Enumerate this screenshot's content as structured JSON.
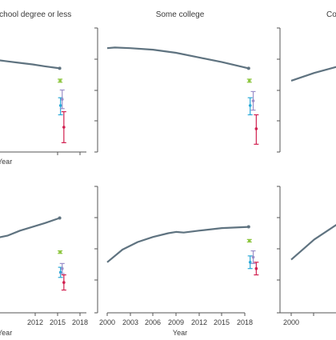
{
  "colors": {
    "trend_line": "#5f7380",
    "axis": "#555555",
    "green_marker": "#8dc63f",
    "blue_marker": "#29a9d8",
    "purple_marker": "#9b8fc9",
    "red_marker": "#d11f4f"
  },
  "chart_data": [
    {
      "type": "line",
      "title": "High school degree or less",
      "xlabel": "Year",
      "x_ticks": [
        "2012",
        "2015",
        "2018"
      ],
      "series": [
        {
          "x": [
            2000,
            2003,
            2006,
            2009,
            2012,
            2015,
            2018.5
          ],
          "values": [
            1.0,
            0.995,
            0.985,
            0.975,
            0.965,
            0.953,
            0.94
          ]
        }
      ],
      "markers": [
        {
          "color": "green",
          "x": 2018.6,
          "value": 0.86,
          "low": 0.85,
          "high": 0.87
        },
        {
          "color": "blue",
          "x": 2018.7,
          "value": 0.7,
          "low": 0.64,
          "high": 0.75
        },
        {
          "color": "purple",
          "x": 2019.1,
          "value": 0.74,
          "low": 0.68,
          "high": 0.8
        },
        {
          "color": "red",
          "x": 2019.5,
          "value": 0.56,
          "low": 0.46,
          "high": 0.66
        }
      ]
    },
    {
      "type": "line",
      "title": "Some college",
      "xlabel": "",
      "x_ticks": [],
      "series": [
        {
          "x": [
            2000,
            2001,
            2003,
            2006,
            2009,
            2012,
            2015,
            2018.5
          ],
          "values": [
            1.07,
            1.074,
            1.07,
            1.06,
            1.04,
            1.01,
            0.98,
            0.94
          ]
        }
      ],
      "markers": [
        {
          "color": "green",
          "x": 2018.6,
          "value": 0.86,
          "low": 0.85,
          "high": 0.87
        },
        {
          "color": "blue",
          "x": 2018.7,
          "value": 0.7,
          "low": 0.64,
          "high": 0.75
        },
        {
          "color": "purple",
          "x": 2019.1,
          "value": 0.73,
          "low": 0.67,
          "high": 0.79
        },
        {
          "color": "red",
          "x": 2019.5,
          "value": 0.55,
          "low": 0.45,
          "high": 0.64
        }
      ]
    },
    {
      "type": "line",
      "title": "Co",
      "xlabel": "",
      "x_ticks": [],
      "series": [
        {
          "x": [
            2000,
            2003,
            2006,
            2009
          ],
          "values": [
            0.86,
            0.91,
            0.95,
            0.98
          ]
        }
      ],
      "markers": []
    },
    {
      "type": "line",
      "title": "",
      "xlabel": "Year",
      "x_ticks": [
        "2012",
        "2015",
        "2018"
      ],
      "series": [
        {
          "x": [
            2000,
            2003,
            2006,
            2009,
            2012,
            2015,
            2018.5
          ],
          "values": [
            0.78,
            0.79,
            0.81,
            0.85,
            0.88,
            0.91,
            0.95
          ]
        }
      ],
      "markers": [
        {
          "color": "green",
          "x": 2018.6,
          "value": 0.68,
          "low": 0.67,
          "high": 0.69
        },
        {
          "color": "blue",
          "x": 2018.7,
          "value": 0.52,
          "low": 0.48,
          "high": 0.56
        },
        {
          "color": "purple",
          "x": 2019.1,
          "value": 0.55,
          "low": 0.51,
          "high": 0.59
        },
        {
          "color": "red",
          "x": 2019.5,
          "value": 0.44,
          "low": 0.38,
          "high": 0.5
        }
      ]
    },
    {
      "type": "line",
      "title": "",
      "xlabel": "Year",
      "x_ticks": [
        "2000",
        "2003",
        "2006",
        "2009",
        "2012",
        "2015",
        "2018"
      ],
      "series": [
        {
          "x": [
            2000,
            2002,
            2004,
            2006,
            2008,
            2009,
            2010,
            2012,
            2015,
            2018.5
          ],
          "values": [
            0.6,
            0.7,
            0.76,
            0.8,
            0.83,
            0.84,
            0.835,
            0.85,
            0.87,
            0.88
          ]
        }
      ],
      "markers": [
        {
          "color": "green",
          "x": 2018.6,
          "value": 0.77,
          "low": 0.76,
          "high": 0.78
        },
        {
          "color": "blue",
          "x": 2018.7,
          "value": 0.6,
          "low": 0.55,
          "high": 0.65
        },
        {
          "color": "purple",
          "x": 2019.1,
          "value": 0.64,
          "low": 0.59,
          "high": 0.69
        },
        {
          "color": "red",
          "x": 2019.5,
          "value": 0.55,
          "low": 0.5,
          "high": 0.6
        }
      ]
    },
    {
      "type": "line",
      "title": "",
      "xlabel": "",
      "x_ticks": [
        "2000"
      ],
      "series": [
        {
          "x": [
            2000,
            2003,
            2006,
            2009
          ],
          "values": [
            0.62,
            0.78,
            0.9,
            0.98
          ]
        }
      ],
      "markers": []
    }
  ]
}
